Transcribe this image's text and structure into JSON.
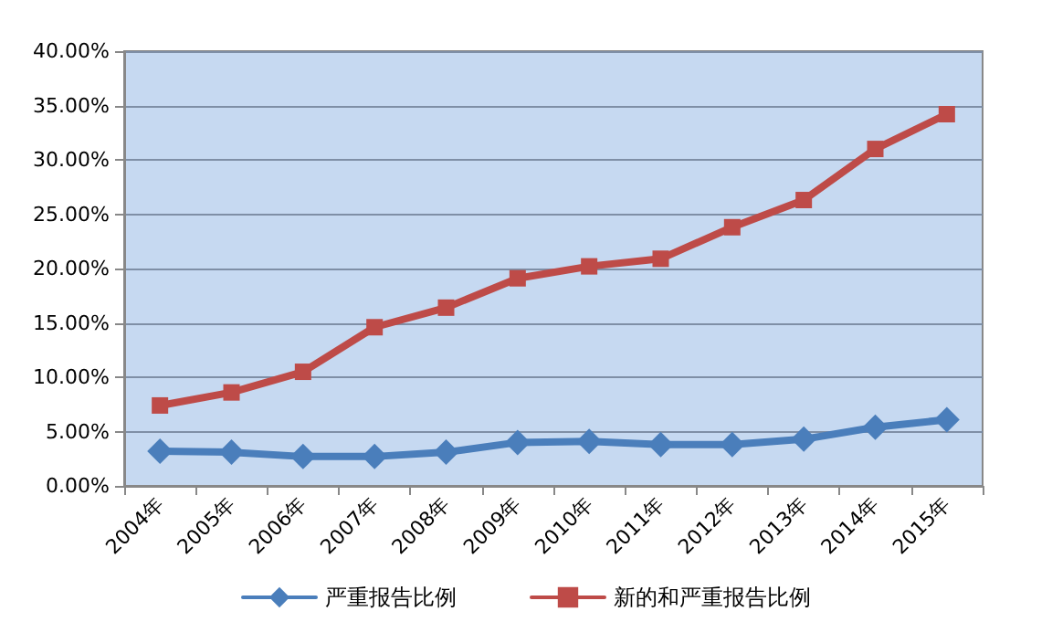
{
  "chart_data": {
    "type": "line",
    "categories": [
      "2004年",
      "2005年",
      "2006年",
      "2007年",
      "2008年",
      "2009年",
      "2010年",
      "2011年",
      "2012年",
      "2013年",
      "2014年",
      "2015年"
    ],
    "series": [
      {
        "name": "严重报告比例",
        "color": "#4a7ebb",
        "marker": "diamond",
        "values": [
          3.2,
          3.1,
          2.7,
          2.7,
          3.1,
          4.0,
          4.1,
          3.8,
          3.8,
          4.3,
          5.4,
          6.1
        ]
      },
      {
        "name": "新的和严重报告比例",
        "color": "#be4b48",
        "marker": "square",
        "values": [
          7.4,
          8.6,
          10.5,
          14.6,
          16.4,
          19.1,
          20.2,
          20.9,
          23.8,
          26.3,
          31.0,
          34.2
        ]
      }
    ],
    "ylim": [
      0,
      40
    ],
    "yticks": [
      {
        "value": 0,
        "label": "0.00%"
      },
      {
        "value": 5,
        "label": "5.00%"
      },
      {
        "value": 10,
        "label": "10.00%"
      },
      {
        "value": 15,
        "label": "15.00%"
      },
      {
        "value": 20,
        "label": "20.00%"
      },
      {
        "value": 25,
        "label": "25.00%"
      },
      {
        "value": 30,
        "label": "30.00%"
      },
      {
        "value": 35,
        "label": "35.00%"
      },
      {
        "value": 40,
        "label": "40.00%"
      }
    ],
    "grid": "y",
    "legend": "bottom",
    "line_style": "solid"
  }
}
